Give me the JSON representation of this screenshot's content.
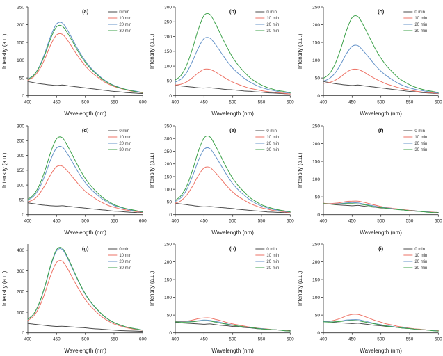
{
  "figure": {
    "xlabel": "Wavelength (nm)",
    "ylabel": "Intensity (a.u.)",
    "xlim": [
      400,
      600
    ],
    "xticks": [
      400,
      450,
      500,
      550,
      600
    ],
    "x": [
      400,
      410,
      420,
      430,
      440,
      450,
      460,
      470,
      480,
      490,
      500,
      510,
      520,
      530,
      540,
      550,
      560,
      570,
      580,
      590,
      600
    ],
    "colors": {
      "0 min": "#4a4a4a",
      "10 min": "#ee7265",
      "20 min": "#6593c9",
      "30 min": "#3da24a"
    },
    "legend_entries": [
      "0 min",
      "10 min",
      "20 min",
      "30 min"
    ],
    "legend_position": "top-right",
    "grid": "off"
  },
  "chart_data": [
    {
      "type": "line",
      "id": "a",
      "label": "(a)",
      "ylim": [
        0,
        250
      ],
      "yticks": [
        0,
        50,
        100,
        150,
        200,
        250
      ],
      "series": [
        {
          "name": "0 min",
          "values": [
            40,
            37,
            34,
            32,
            30,
            29,
            30,
            28,
            26,
            24,
            22,
            20,
            18,
            16,
            14,
            12,
            11,
            9,
            8,
            7,
            6
          ]
        },
        {
          "name": "10 min",
          "values": [
            44,
            53,
            73,
            105,
            144,
            171,
            173,
            154,
            129,
            105,
            84,
            67,
            54,
            42,
            33,
            26,
            21,
            17,
            13,
            11,
            8
          ]
        },
        {
          "name": "20 min",
          "values": [
            47,
            58,
            82,
            122,
            169,
            202,
            205,
            182,
            152,
            123,
            98,
            78,
            62,
            48,
            37,
            29,
            23,
            18,
            15,
            12,
            9
          ]
        },
        {
          "name": "30 min",
          "values": [
            46,
            57,
            80,
            117,
            162,
            194,
            196,
            174,
            146,
            118,
            94,
            75,
            60,
            46,
            36,
            28,
            22,
            18,
            14,
            11,
            9
          ]
        }
      ]
    },
    {
      "type": "line",
      "id": "b",
      "label": "(b)",
      "ylim": [
        0,
        300
      ],
      "yticks": [
        0,
        50,
        100,
        150,
        200,
        250,
        300
      ],
      "series": [
        {
          "name": "0 min",
          "values": [
            35,
            33,
            31,
            29,
            27,
            26,
            27,
            25,
            23,
            21,
            20,
            18,
            16,
            15,
            13,
            12,
            10,
            9,
            8,
            7,
            6
          ]
        },
        {
          "name": "10 min",
          "values": [
            36,
            39,
            47,
            61,
            77,
            89,
            89,
            80,
            68,
            56,
            46,
            38,
            31,
            25,
            21,
            17,
            14,
            12,
            10,
            8,
            6
          ]
        },
        {
          "name": "20 min",
          "values": [
            46,
            56,
            79,
            117,
            161,
            193,
            195,
            173,
            145,
            117,
            93,
            75,
            59,
            46,
            36,
            28,
            22,
            18,
            14,
            11,
            9
          ]
        },
        {
          "name": "30 min",
          "values": [
            53,
            69,
            104,
            159,
            224,
            271,
            275,
            243,
            203,
            164,
            129,
            102,
            80,
            61,
            47,
            36,
            28,
            22,
            17,
            14,
            10
          ]
        }
      ]
    },
    {
      "type": "line",
      "id": "c",
      "label": "(c)",
      "ylim": [
        0,
        250
      ],
      "yticks": [
        0,
        50,
        100,
        150,
        200,
        250
      ],
      "series": [
        {
          "name": "0 min",
          "values": [
            40,
            37,
            34,
            32,
            30,
            29,
            30,
            28,
            26,
            24,
            22,
            20,
            18,
            16,
            14,
            12,
            11,
            9,
            8,
            7,
            6
          ]
        },
        {
          "name": "10 min",
          "values": [
            35,
            37,
            43,
            53,
            66,
            74,
            74,
            67,
            57,
            48,
            40,
            33,
            28,
            23,
            19,
            16,
            13,
            11,
            9,
            8,
            6
          ]
        },
        {
          "name": "20 min",
          "values": [
            41,
            48,
            63,
            88,
            118,
            139,
            141,
            125,
            106,
            86,
            69,
            56,
            45,
            35,
            28,
            22,
            18,
            15,
            12,
            10,
            7
          ]
        },
        {
          "name": "30 min",
          "values": [
            49,
            61,
            88,
            131,
            183,
            220,
            223,
            197,
            165,
            133,
            106,
            84,
            67,
            51,
            40,
            31,
            24,
            19,
            15,
            12,
            9
          ]
        }
      ]
    },
    {
      "type": "line",
      "id": "d",
      "label": "(d)",
      "ylim": [
        0,
        300
      ],
      "yticks": [
        0,
        50,
        100,
        150,
        200,
        250,
        300
      ],
      "series": [
        {
          "name": "0 min",
          "values": [
            40,
            37,
            34,
            32,
            30,
            29,
            30,
            28,
            26,
            24,
            22,
            20,
            18,
            16,
            14,
            12,
            11,
            9,
            8,
            7,
            6
          ]
        },
        {
          "name": "10 min",
          "values": [
            43,
            51,
            70,
            100,
            136,
            162,
            164,
            145,
            122,
            99,
            79,
            64,
            51,
            40,
            31,
            25,
            20,
            16,
            13,
            10,
            8
          ]
        },
        {
          "name": "20 min",
          "values": [
            49,
            62,
            89,
            134,
            187,
            225,
            228,
            202,
            169,
            136,
            108,
            86,
            68,
            52,
            41,
            31,
            25,
            20,
            15,
            12,
            9
          ]
        },
        {
          "name": "30 min",
          "values": [
            52,
            67,
            99,
            150,
            212,
            256,
            260,
            229,
            192,
            155,
            122,
            97,
            76,
            58,
            45,
            34,
            27,
            21,
            17,
            13,
            10
          ]
        }
      ]
    },
    {
      "type": "line",
      "id": "e",
      "label": "(e)",
      "ylim": [
        0,
        350
      ],
      "yticks": [
        0,
        50,
        100,
        150,
        200,
        250,
        300,
        350
      ],
      "series": [
        {
          "name": "0 min",
          "values": [
            45,
            42,
            39,
            36,
            33,
            31,
            32,
            30,
            28,
            26,
            24,
            21,
            19,
            17,
            15,
            13,
            11,
            10,
            9,
            8,
            7
          ]
        },
        {
          "name": "10 min",
          "values": [
            45,
            55,
            77,
            112,
            154,
            184,
            186,
            165,
            139,
            112,
            89,
            71,
            57,
            44,
            35,
            27,
            22,
            17,
            14,
            11,
            8
          ]
        },
        {
          "name": "20 min",
          "values": [
            52,
            67,
            99,
            151,
            212,
            257,
            261,
            230,
            193,
            155,
            122,
            97,
            76,
            58,
            45,
            34,
            27,
            21,
            17,
            13,
            10
          ]
        },
        {
          "name": "30 min",
          "values": [
            56,
            75,
            113,
            175,
            249,
            302,
            307,
            271,
            227,
            182,
            143,
            113,
            89,
            67,
            52,
            39,
            31,
            24,
            19,
            15,
            11
          ]
        }
      ]
    },
    {
      "type": "line",
      "id": "f",
      "label": "(f)",
      "ylim": [
        0,
        250
      ],
      "yticks": [
        0,
        50,
        100,
        150,
        200,
        250
      ],
      "series": [
        {
          "name": "0 min",
          "values": [
            32,
            30,
            28,
            27,
            26,
            25,
            26,
            24,
            22,
            21,
            19,
            18,
            16,
            15,
            13,
            12,
            11,
            9,
            8,
            7,
            6
          ]
        },
        {
          "name": "10 min",
          "values": [
            32,
            31,
            32,
            34,
            37,
            38,
            38,
            35,
            31,
            27,
            23,
            20,
            18,
            16,
            14,
            12,
            10,
            9,
            8,
            7,
            5
          ]
        },
        {
          "name": "20 min",
          "values": [
            31,
            30,
            30,
            31,
            33,
            34,
            33,
            30,
            27,
            24,
            21,
            19,
            17,
            15,
            13,
            11,
            10,
            9,
            8,
            6,
            5
          ]
        },
        {
          "name": "30 min",
          "values": [
            31,
            30,
            29,
            30,
            31,
            31,
            30,
            28,
            25,
            22,
            20,
            18,
            16,
            14,
            13,
            11,
            10,
            9,
            7,
            6,
            5
          ]
        }
      ]
    },
    {
      "type": "line",
      "id": "g",
      "label": "(g)",
      "ylim": [
        0,
        430
      ],
      "yticks": [
        0,
        100,
        200,
        300,
        400
      ],
      "series": [
        {
          "name": "0 min",
          "values": [
            45,
            42,
            39,
            36,
            33,
            31,
            32,
            30,
            28,
            26,
            24,
            21,
            19,
            17,
            15,
            13,
            11,
            10,
            9,
            8,
            7
          ]
        },
        {
          "name": "10 min",
          "values": [
            60,
            81,
            125,
            196,
            280,
            341,
            347,
            306,
            255,
            205,
            161,
            127,
            99,
            75,
            57,
            43,
            34,
            26,
            20,
            16,
            12
          ]
        },
        {
          "name": "20 min",
          "values": [
            65,
            90,
            143,
            226,
            325,
            397,
            404,
            356,
            297,
            238,
            186,
            146,
            114,
            86,
            65,
            49,
            38,
            29,
            23,
            18,
            13
          ]
        },
        {
          "name": "30 min",
          "values": [
            66,
            91,
            145,
            229,
            330,
            403,
            410,
            362,
            301,
            241,
            189,
            148,
            116,
            87,
            66,
            50,
            39,
            30,
            23,
            18,
            13
          ]
        }
      ]
    },
    {
      "type": "line",
      "id": "h",
      "label": "(h)",
      "ylim": [
        0,
        250
      ],
      "yticks": [
        0,
        50,
        100,
        150,
        200,
        250
      ],
      "series": [
        {
          "name": "0 min",
          "values": [
            30,
            28,
            27,
            26,
            25,
            24,
            25,
            23,
            21,
            20,
            18,
            17,
            15,
            14,
            12,
            11,
            10,
            9,
            8,
            7,
            6
          ]
        },
        {
          "name": "10 min",
          "values": [
            32,
            32,
            33,
            36,
            40,
            42,
            42,
            38,
            34,
            29,
            25,
            22,
            19,
            16,
            14,
            12,
            11,
            9,
            8,
            7,
            5
          ]
        },
        {
          "name": "20 min",
          "values": [
            31,
            31,
            31,
            32,
            34,
            36,
            35,
            32,
            29,
            25,
            22,
            19,
            17,
            15,
            13,
            12,
            10,
            9,
            8,
            6,
            5
          ]
        },
        {
          "name": "30 min",
          "values": [
            31,
            30,
            30,
            31,
            33,
            34,
            33,
            30,
            27,
            24,
            21,
            19,
            17,
            15,
            13,
            11,
            10,
            9,
            8,
            6,
            5
          ]
        }
      ]
    },
    {
      "type": "line",
      "id": "i",
      "label": "(i)",
      "ylim": [
        0,
        250
      ],
      "yticks": [
        0,
        50,
        100,
        150,
        200,
        250
      ],
      "series": [
        {
          "name": "0 min",
          "values": [
            33,
            31,
            29,
            28,
            27,
            26,
            27,
            25,
            23,
            21,
            20,
            18,
            17,
            15,
            13,
            12,
            11,
            9,
            8,
            7,
            6
          ]
        },
        {
          "name": "10 min",
          "values": [
            33,
            33,
            36,
            41,
            48,
            52,
            52,
            47,
            41,
            35,
            30,
            25,
            22,
            18,
            16,
            13,
            11,
            10,
            8,
            7,
            6
          ]
        },
        {
          "name": "20 min",
          "values": [
            32,
            31,
            31,
            33,
            36,
            37,
            37,
            34,
            30,
            26,
            23,
            20,
            18,
            15,
            14,
            12,
            10,
            9,
            8,
            7,
            5
          ]
        },
        {
          "name": "30 min",
          "values": [
            31,
            30,
            31,
            32,
            34,
            35,
            34,
            31,
            28,
            25,
            22,
            19,
            17,
            15,
            13,
            12,
            10,
            9,
            8,
            6,
            5
          ]
        }
      ]
    }
  ]
}
